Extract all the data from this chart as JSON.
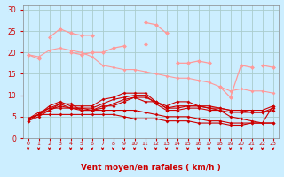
{
  "background_color": "#cceeff",
  "grid_color": "#aacccc",
  "xlabel": "Vent moyen/en rafales ( km/h )",
  "x": [
    0,
    1,
    2,
    3,
    4,
    5,
    6,
    7,
    8,
    9,
    10,
    11,
    12,
    13,
    14,
    15,
    16,
    17,
    18,
    19,
    20,
    21,
    22,
    23
  ],
  "ylim": [
    0,
    31
  ],
  "xlim": [
    -0.5,
    23.5
  ],
  "yticks": [
    0,
    5,
    10,
    15,
    20,
    25,
    30
  ],
  "series_light": [
    [
      19.5,
      18.5,
      null,
      null,
      null,
      null,
      null,
      null,
      null,
      null,
      null,
      null,
      null,
      null,
      null,
      null,
      null,
      null,
      null,
      null,
      null,
      null,
      null,
      null
    ],
    [
      null,
      null,
      23.5,
      25.5,
      24.5,
      24.0,
      24.0,
      null,
      null,
      null,
      null,
      22.0,
      null,
      null,
      null,
      null,
      null,
      null,
      null,
      null,
      null,
      null,
      null,
      null
    ],
    [
      null,
      null,
      null,
      null,
      20.0,
      19.5,
      20.0,
      20.0,
      21.0,
      21.5,
      null,
      27.0,
      26.5,
      24.5,
      null,
      null,
      null,
      null,
      null,
      null,
      null,
      null,
      null,
      null
    ],
    [
      null,
      null,
      null,
      null,
      null,
      null,
      null,
      null,
      null,
      null,
      null,
      null,
      null,
      null,
      17.5,
      17.5,
      18.0,
      17.5,
      null,
      null,
      null,
      null,
      null,
      null
    ],
    [
      null,
      null,
      null,
      null,
      null,
      null,
      null,
      null,
      null,
      null,
      null,
      null,
      null,
      null,
      null,
      null,
      null,
      null,
      12.0,
      9.5,
      17.0,
      16.5,
      null,
      null
    ],
    [
      null,
      null,
      null,
      null,
      null,
      null,
      null,
      null,
      null,
      null,
      null,
      null,
      null,
      null,
      null,
      null,
      null,
      null,
      null,
      null,
      null,
      null,
      17.0,
      16.5
    ]
  ],
  "series_light_full": [
    19.5,
    19.0,
    20.5,
    21.0,
    20.5,
    20.0,
    19.0,
    17.0,
    16.5,
    16.0,
    16.0,
    15.5,
    15.0,
    14.5,
    14.0,
    14.0,
    13.5,
    13.0,
    12.0,
    11.0,
    11.5,
    11.0,
    11.0,
    10.5
  ],
  "series_dark": [
    [
      4.0,
      5.5,
      7.5,
      8.5,
      7.5,
      7.5,
      7.5,
      9.0,
      9.5,
      10.5,
      10.5,
      10.5,
      8.5,
      7.0,
      7.0,
      7.5,
      7.5,
      7.0,
      7.0,
      6.5,
      6.5,
      6.5,
      6.5,
      7.5
    ],
    [
      4.5,
      6.0,
      7.0,
      8.0,
      7.0,
      7.0,
      7.0,
      8.0,
      9.0,
      9.5,
      10.0,
      10.0,
      8.0,
      6.5,
      6.5,
      7.0,
      7.0,
      6.5,
      6.5,
      6.0,
      6.0,
      6.0,
      6.0,
      7.0
    ],
    [
      4.5,
      5.5,
      6.5,
      8.0,
      8.0,
      6.5,
      6.5,
      7.5,
      7.5,
      8.5,
      9.5,
      8.5,
      8.5,
      7.5,
      8.5,
      8.5,
      7.5,
      7.5,
      7.0,
      6.5,
      6.5,
      6.0,
      6.0,
      6.5
    ],
    [
      4.5,
      5.5,
      5.5,
      5.5,
      5.5,
      5.5,
      5.5,
      5.5,
      5.5,
      5.0,
      4.5,
      4.5,
      4.5,
      4.0,
      4.0,
      4.0,
      3.5,
      3.5,
      3.5,
      3.0,
      3.0,
      3.5,
      3.5,
      3.5
    ],
    [
      4.0,
      5.0,
      6.5,
      7.5,
      7.0,
      6.5,
      6.5,
      7.0,
      8.0,
      9.0,
      9.5,
      9.5,
      8.5,
      7.0,
      7.5,
      7.5,
      7.5,
      7.0,
      6.5,
      5.0,
      4.5,
      4.0,
      3.5,
      7.5
    ],
    [
      4.5,
      5.5,
      7.0,
      7.0,
      7.0,
      7.0,
      6.5,
      6.5,
      6.5,
      6.5,
      6.5,
      6.0,
      5.5,
      5.0,
      5.0,
      5.0,
      4.5,
      4.0,
      4.0,
      3.5,
      3.5,
      3.5,
      3.5,
      3.5
    ]
  ],
  "light_color": "#ff9999",
  "dark_color": "#cc0000",
  "wind_arrow_color": "#cc0000"
}
